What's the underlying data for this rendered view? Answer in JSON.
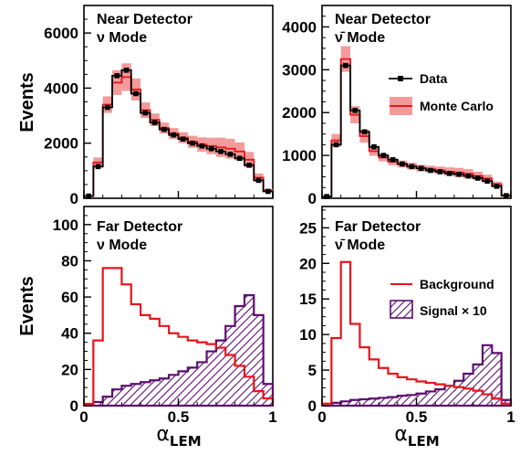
{
  "colors": {
    "data": "#000000",
    "mc_line": "#e8141b",
    "mc_band": "#f49a9a",
    "background": "#e8141b",
    "signal": "#5c0e6e"
  },
  "y_axis_label": "Events",
  "x_axis_label_main": "α",
  "x_axis_label_sub": "LEM",
  "legend_top": {
    "data": "Data",
    "mc": "Monte Carlo"
  },
  "legend_bottom": {
    "background": "Background",
    "signal": "Signal",
    "signal_suffix": "× 10"
  },
  "chart_data": [
    {
      "panel": "near_nu",
      "type": "histogram",
      "title_line1": "Near Detector",
      "title_line2": "ν Mode",
      "x_bin_edges": [
        0.0,
        0.05,
        0.1,
        0.15,
        0.2,
        0.25,
        0.3,
        0.35,
        0.4,
        0.45,
        0.5,
        0.55,
        0.6,
        0.65,
        0.7,
        0.75,
        0.8,
        0.85,
        0.9,
        0.95,
        1.0
      ],
      "xlim": [
        0,
        1
      ],
      "ylim": [
        0,
        7000
      ],
      "yticks": [
        0,
        2000,
        4000,
        6000
      ],
      "xticks": [
        0,
        0.5,
        1
      ],
      "data": [
        80,
        1150,
        3300,
        4450,
        4650,
        3800,
        3100,
        2750,
        2500,
        2300,
        2150,
        2000,
        1900,
        1800,
        1700,
        1600,
        1450,
        1200,
        650,
        250
      ],
      "mc": [
        80,
        1300,
        3400,
        4200,
        4400,
        3950,
        3200,
        2850,
        2550,
        2350,
        2200,
        2050,
        1950,
        1900,
        1850,
        1800,
        1700,
        1400,
        750,
        280
      ],
      "mc_err": [
        20,
        180,
        300,
        450,
        500,
        400,
        280,
        230,
        200,
        200,
        200,
        220,
        260,
        300,
        350,
        360,
        330,
        280,
        150,
        60
      ]
    },
    {
      "panel": "near_nubar",
      "type": "histogram",
      "title_line1": "Near Detector",
      "title_line2": "ν̄ Mode",
      "x_bin_edges": [
        0.0,
        0.05,
        0.1,
        0.15,
        0.2,
        0.25,
        0.3,
        0.35,
        0.4,
        0.45,
        0.5,
        0.55,
        0.6,
        0.65,
        0.7,
        0.75,
        0.8,
        0.85,
        0.9,
        0.95,
        1.0
      ],
      "xlim": [
        0,
        1
      ],
      "ylim": [
        0,
        4500
      ],
      "yticks": [
        0,
        1000,
        2000,
        3000,
        4000
      ],
      "xticks": [
        0,
        0.5,
        1
      ],
      "data": [
        40,
        1250,
        3100,
        2050,
        1550,
        1200,
        1000,
        900,
        800,
        740,
        700,
        650,
        620,
        580,
        560,
        520,
        470,
        400,
        280,
        60
      ],
      "mc": [
        40,
        1350,
        3250,
        1950,
        1450,
        1100,
        950,
        850,
        800,
        750,
        700,
        680,
        650,
        620,
        600,
        570,
        520,
        460,
        330,
        70
      ],
      "mc_err": [
        15,
        150,
        300,
        200,
        150,
        110,
        90,
        80,
        80,
        80,
        80,
        80,
        90,
        100,
        110,
        110,
        100,
        90,
        60,
        20
      ]
    },
    {
      "panel": "far_nu",
      "type": "histogram",
      "title_line1": "Far Detector",
      "title_line2": "ν Mode",
      "x_bin_edges": [
        0.0,
        0.05,
        0.1,
        0.15,
        0.2,
        0.25,
        0.3,
        0.35,
        0.4,
        0.45,
        0.5,
        0.55,
        0.6,
        0.65,
        0.7,
        0.75,
        0.8,
        0.85,
        0.9,
        0.95,
        1.0
      ],
      "xlim": [
        0,
        1
      ],
      "ylim": [
        0,
        110
      ],
      "yticks": [
        0,
        20,
        40,
        60,
        80,
        100
      ],
      "xticks": [
        0,
        0.5,
        1
      ],
      "background": [
        1,
        36,
        76,
        76,
        67,
        56,
        50,
        48,
        44,
        40,
        38,
        36,
        35,
        34,
        32,
        28,
        22,
        16,
        8,
        4
      ],
      "signal_x10": [
        0,
        2,
        5,
        9,
        11,
        12,
        13,
        14,
        15,
        17,
        19,
        21,
        24,
        30,
        36,
        44,
        55,
        61,
        50,
        12
      ]
    },
    {
      "panel": "far_nubar",
      "type": "histogram",
      "title_line1": "Far Detector",
      "title_line2": "ν̄ Mode",
      "x_bin_edges": [
        0.0,
        0.05,
        0.1,
        0.15,
        0.2,
        0.25,
        0.3,
        0.35,
        0.4,
        0.45,
        0.5,
        0.55,
        0.6,
        0.65,
        0.7,
        0.75,
        0.8,
        0.85,
        0.9,
        0.95,
        1.0
      ],
      "xlim": [
        0,
        1
      ],
      "ylim": [
        0,
        28
      ],
      "yticks": [
        0,
        5,
        10,
        15,
        20,
        25
      ],
      "xticks": [
        0,
        0.5,
        1
      ],
      "background": [
        0.3,
        9.5,
        20.2,
        11.5,
        8.2,
        6.5,
        5.3,
        4.5,
        4.0,
        3.7,
        3.4,
        3.2,
        3.0,
        2.8,
        2.6,
        2.4,
        2.1,
        1.6,
        1.0,
        0.3
      ],
      "signal_x10": [
        0,
        0.4,
        0.6,
        0.8,
        0.9,
        1.0,
        1.1,
        1.2,
        1.4,
        1.5,
        1.7,
        2.0,
        2.3,
        2.8,
        3.5,
        4.5,
        5.8,
        8.5,
        7.4,
        0.8
      ]
    }
  ]
}
